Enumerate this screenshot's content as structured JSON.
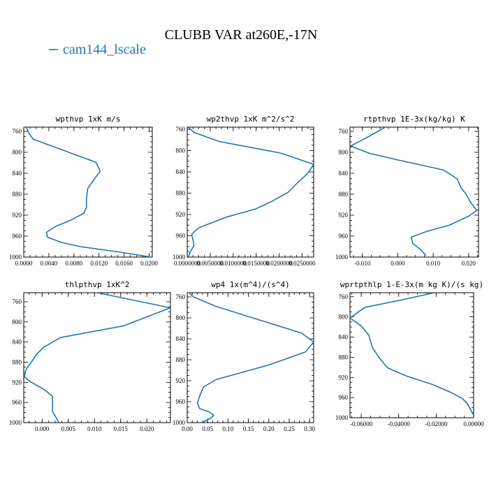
{
  "figure": {
    "title": "CLUBB VAR at260E,-17N",
    "legend": {
      "label": "cam144_lscale",
      "color": "#1f77b4"
    }
  },
  "chart_data": [
    {
      "type": "line",
      "title": "wpthvp  1xK m/s",
      "xlabel": "",
      "ylabel": "",
      "xlim": [
        0.0,
        0.0205
      ],
      "ylim": [
        1000,
        752
      ],
      "y_inverted": true,
      "xticks": [
        0.0,
        0.004,
        0.008,
        0.012,
        0.016,
        0.02
      ],
      "xtick_labels": [
        "0.0000",
        "0.0040",
        "0.0080",
        "0.0120",
        "0.0160",
        "0.0200"
      ],
      "yticks": [
        760,
        800,
        840,
        880,
        920,
        960,
        1000
      ],
      "series": [
        {
          "name": "cam144_lscale",
          "color": "#1f77b4",
          "points": [
            [
              0.0004,
              752
            ],
            [
              0.0008,
              763
            ],
            [
              0.0015,
              775
            ],
            [
              0.0115,
              819
            ],
            [
              0.0122,
              836
            ],
            [
              0.0112,
              852
            ],
            [
              0.0102,
              869
            ],
            [
              0.01,
              889
            ],
            [
              0.01,
              905
            ],
            [
              0.0096,
              916
            ],
            [
              0.0076,
              929
            ],
            [
              0.005,
              942
            ],
            [
              0.0036,
              953
            ],
            [
              0.0038,
              962
            ],
            [
              0.006,
              972
            ],
            [
              0.009,
              980
            ],
            [
              0.015,
              990
            ],
            [
              0.0203,
              1000
            ]
          ]
        }
      ]
    },
    {
      "type": "line",
      "title": "wp2thvp  1xK m^2/s^2",
      "xlabel": "",
      "ylabel": "",
      "xlim": [
        0.0,
        0.0275
      ],
      "ylim": [
        1000,
        756
      ],
      "y_inverted": true,
      "xticks": [
        0.0,
        0.005,
        0.01,
        0.015,
        0.02,
        0.025
      ],
      "xtick_labels": [
        "0.0000000",
        "0.0050000",
        "0.0100000",
        "0.0150000",
        "0.0200000",
        "0.0250000"
      ],
      "yticks": [
        760,
        800,
        840,
        880,
        920,
        960,
        1000
      ],
      "series": [
        {
          "name": "cam144_lscale",
          "color": "#1f77b4",
          "points": [
            [
              0.0002,
              756
            ],
            [
              0.0015,
              766
            ],
            [
              0.007,
              783
            ],
            [
              0.0205,
              805
            ],
            [
              0.0275,
              826
            ],
            [
              0.0262,
              843
            ],
            [
              0.0238,
              862
            ],
            [
              0.022,
              878
            ],
            [
              0.0185,
              895
            ],
            [
              0.0148,
              910
            ],
            [
              0.0085,
              925
            ],
            [
              0.0025,
              945
            ],
            [
              0.001,
              957
            ],
            [
              0.0012,
              966
            ],
            [
              0.0015,
              978
            ],
            [
              0.0008,
              988
            ],
            [
              0.0002,
              1000
            ]
          ]
        }
      ]
    },
    {
      "type": "line",
      "title": "rtpthvp  1E-3x(kg/kg) K",
      "xlabel": "",
      "ylabel": "",
      "xlim": [
        -0.0135,
        0.0228
      ],
      "ylim": [
        1000,
        752
      ],
      "y_inverted": true,
      "xticks": [
        -0.01,
        0.0,
        0.01,
        0.02
      ],
      "xtick_labels": [
        "-0.010",
        "0.000",
        "0.010",
        "0.020"
      ],
      "yticks": [
        760,
        800,
        840,
        880,
        920,
        960,
        1000
      ],
      "series": [
        {
          "name": "cam144_lscale",
          "color": "#1f77b4",
          "points": [
            [
              -0.0035,
              752
            ],
            [
              -0.0085,
              771
            ],
            [
              -0.0133,
              788
            ],
            [
              -0.008,
              802
            ],
            [
              -0.001,
              813
            ],
            [
              0.013,
              834
            ],
            [
              0.0168,
              851
            ],
            [
              0.0178,
              867
            ],
            [
              0.0193,
              880
            ],
            [
              0.0205,
              895
            ],
            [
              0.0223,
              911
            ],
            [
              0.02,
              922
            ],
            [
              0.0146,
              939
            ],
            [
              0.0082,
              951
            ],
            [
              0.0038,
              962
            ],
            [
              0.0042,
              974
            ],
            [
              0.0065,
              986
            ],
            [
              0.008,
              997
            ]
          ]
        }
      ]
    },
    {
      "type": "line",
      "title": "thlpthvp  1xK^2",
      "xlabel": "",
      "ylabel": "",
      "xlim": [
        -0.0035,
        0.0245
      ],
      "ylim": [
        1000,
        742
      ],
      "y_inverted": true,
      "xticks": [
        0.0,
        0.005,
        0.01,
        0.015,
        0.02
      ],
      "xtick_labels": [
        "0.000",
        "0.005",
        "0.010",
        "0.015",
        "0.020"
      ],
      "yticks": [
        760,
        800,
        840,
        880,
        920,
        960,
        1000
      ],
      "series": [
        {
          "name": "cam144_lscale",
          "color": "#1f77b4",
          "points": [
            [
              0.0105,
              742
            ],
            [
              0.0245,
              772
            ],
            [
              0.0155,
              808
            ],
            [
              0.0035,
              831
            ],
            [
              0.0002,
              851
            ],
            [
              -0.001,
              864
            ],
            [
              -0.002,
              879
            ],
            [
              -0.003,
              893
            ],
            [
              -0.0034,
              908
            ],
            [
              -0.0025,
              917
            ],
            [
              0.0005,
              935
            ],
            [
              0.002,
              948
            ],
            [
              0.002,
              962
            ],
            [
              0.002,
              978
            ],
            [
              0.0028,
              992
            ],
            [
              0.0032,
              1000
            ]
          ]
        }
      ]
    },
    {
      "type": "line",
      "title": "wp4  1x(m^4)/(s^4)",
      "xlabel": "",
      "ylabel": "",
      "xlim": [
        0.0,
        0.31
      ],
      "ylim": [
        1000,
        752
      ],
      "y_inverted": true,
      "xticks": [
        0.0,
        0.05,
        0.1,
        0.15,
        0.2,
        0.25,
        0.3
      ],
      "xtick_labels": [
        "0.00",
        "0.05",
        "0.10",
        "0.15",
        "0.20",
        "0.25",
        "0.30"
      ],
      "yticks": [
        760,
        800,
        840,
        880,
        920,
        960,
        1000
      ],
      "series": [
        {
          "name": "cam144_lscale",
          "color": "#1f77b4",
          "points": [
            [
              0.005,
              752
            ],
            [
              0.015,
              760
            ],
            [
              0.07,
              778
            ],
            [
              0.28,
              829
            ],
            [
              0.31,
              846
            ],
            [
              0.29,
              865
            ],
            [
              0.2,
              890
            ],
            [
              0.13,
              905
            ],
            [
              0.07,
              918
            ],
            [
              0.04,
              932
            ],
            [
              0.03,
              950
            ],
            [
              0.025,
              963
            ],
            [
              0.03,
              973
            ],
            [
              0.055,
              980
            ],
            [
              0.065,
              986
            ],
            [
              0.055,
              993
            ],
            [
              0.035,
              1000
            ]
          ]
        }
      ]
    },
    {
      "type": "line",
      "title": "wprtpthlp  1-E-3x(m kg K)/(s kg)",
      "xlabel": "",
      "ylabel": "",
      "xlim": [
        -0.066,
        0.0
      ],
      "ylim": [
        1000,
        752
      ],
      "y_inverted": true,
      "xticks": [
        -0.06,
        -0.04,
        -0.02,
        0.0
      ],
      "xtick_labels": [
        "-0.06000",
        "-0.04000",
        "-0.02000",
        "0.00000"
      ],
      "yticks": [
        760,
        800,
        840,
        880,
        920,
        960,
        1000
      ],
      "series": [
        {
          "name": "cam144_lscale",
          "color": "#1f77b4",
          "points": [
            [
              -0.021,
              752
            ],
            [
              -0.038,
              766
            ],
            [
              -0.058,
              781
            ],
            [
              -0.066,
              802
            ],
            [
              -0.06,
              818
            ],
            [
              -0.056,
              836
            ],
            [
              -0.054,
              861
            ],
            [
              -0.05,
              883
            ],
            [
              -0.046,
              901
            ],
            [
              -0.036,
              917
            ],
            [
              -0.022,
              934
            ],
            [
              -0.012,
              950
            ],
            [
              -0.006,
              962
            ],
            [
              -0.003,
              974
            ],
            [
              -0.0015,
              985
            ],
            [
              0.0,
              995
            ]
          ]
        }
      ]
    }
  ]
}
